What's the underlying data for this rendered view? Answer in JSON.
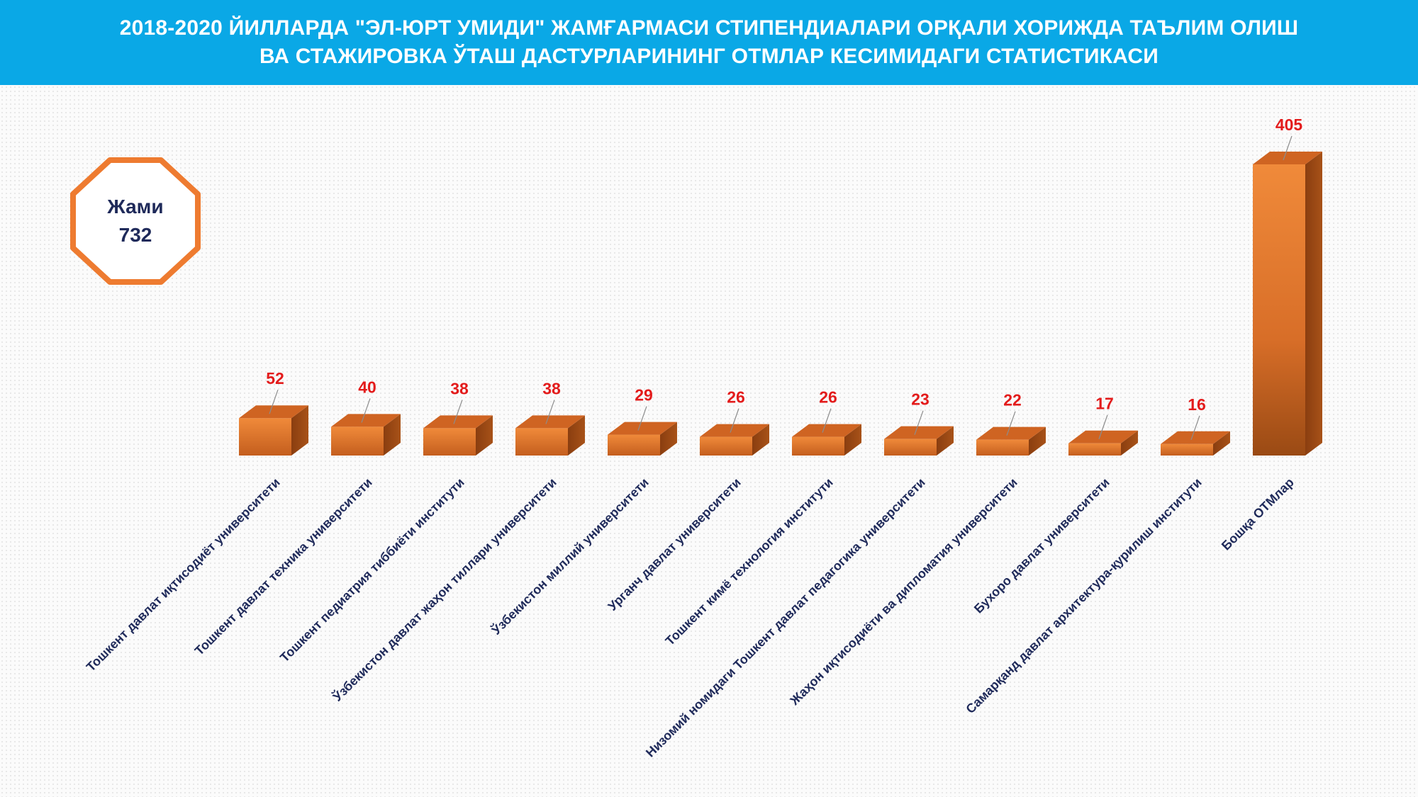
{
  "header": {
    "line1": "2018-2020 ЙИЛЛАРДА \"ЭЛ-ЮРТ УМИДИ\" ЖАМҒАРМАСИ СТИПЕНДИАЛАРИ ОРҚАЛИ ХОРИЖДА ТАЪЛИМ ОЛИШ",
    "line2": "ВА СТАЖИРОВКА ЎТАШ ДАСТУРЛАРИНИНГ ОТМЛАР КЕСИМИДАГИ СТАТИСТИКАСИ"
  },
  "total": {
    "label": "Жами",
    "value": "732"
  },
  "colors": {
    "header_bg": "#0aa8e6",
    "bar_front": "#e8782a",
    "bar_side": "#8a3e10",
    "value_label": "#e31b1b",
    "octagon": "#ee7b30"
  },
  "chart_data": {
    "type": "bar",
    "style": "3d-column",
    "categories": [
      "Тошкент давлат иқтисодиёт университети",
      "Тошкент давлат техника университети",
      "Тошкент педиатрия тиббиёти институти",
      "Ўзбекистон давлат жаҳон тиллари университети",
      "Ўзбекистон миллий университети",
      "Урганч давлат университети",
      "Тошкент кимё технология институти",
      "Низомий номидаги Тошкент давлат педагогика университети",
      "Жаҳон иқтисодиёти ва дипломатия университети",
      "Бухоро давлат университети",
      "Самарқанд давлат архитектура-қурилиш институти",
      "Бошқа ОТМлар"
    ],
    "values": [
      52,
      40,
      38,
      38,
      29,
      26,
      26,
      23,
      22,
      17,
      16,
      405
    ],
    "data_labels": [
      "52",
      "40",
      "38",
      "38",
      "29",
      "26",
      "26",
      "23",
      "22",
      "17",
      "16",
      "405"
    ],
    "title": "",
    "xlabel": "",
    "ylabel": "",
    "grid": false,
    "legend": "none"
  }
}
